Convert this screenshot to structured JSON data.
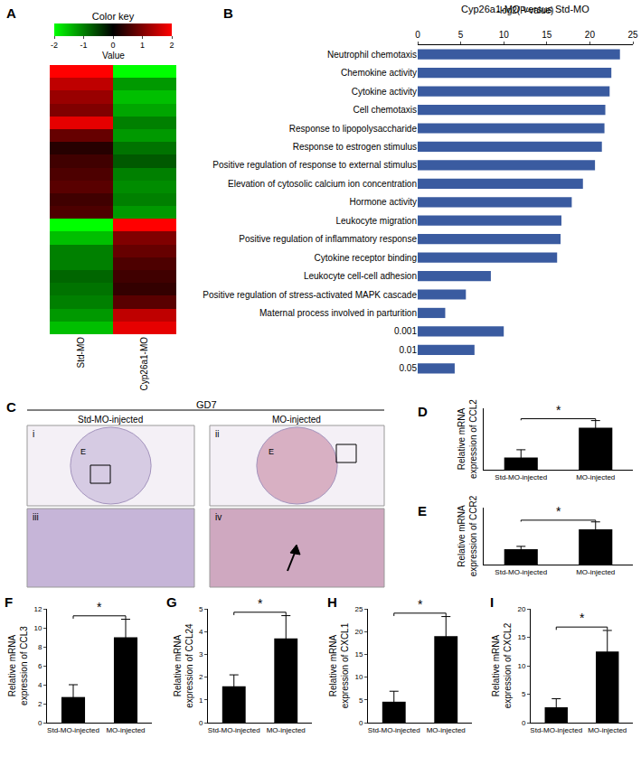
{
  "chart_data": [
    {
      "panel": "A",
      "type": "heatmap",
      "x": [
        "Std-MO",
        "Cyp26a1-MO"
      ],
      "cells": [
        [
          2,
          -2
        ],
        [
          1.5,
          -1.2
        ],
        [
          1.2,
          -1.5
        ],
        [
          1.0,
          -1.3
        ],
        [
          1.8,
          -1.0
        ],
        [
          0.8,
          -1.2
        ],
        [
          0.3,
          -0.9
        ],
        [
          0.5,
          -0.7
        ],
        [
          0.6,
          -1.0
        ],
        [
          0.7,
          -1.1
        ],
        [
          0.5,
          -1.0
        ],
        [
          0.6,
          -1.2
        ],
        [
          -2,
          2
        ],
        [
          -1.5,
          1.0
        ],
        [
          -1.0,
          0.8
        ],
        [
          -1.0,
          0.6
        ],
        [
          -0.8,
          0.5
        ],
        [
          -0.9,
          0.4
        ],
        [
          -1.0,
          0.7
        ],
        [
          -1.2,
          1.5
        ],
        [
          -1.5,
          1.8
        ]
      ],
      "colorbar": {
        "title": "Color key",
        "label": "Value",
        "range": [
          -2,
          2
        ],
        "ticks": [
          -2,
          -1,
          0,
          1,
          2
        ]
      }
    },
    {
      "panel": "B",
      "type": "bar",
      "orientation": "horizontal",
      "title": "Cyp26a1-MO versus Std-MO",
      "xlabel": "-log2(P-value)",
      "categories": [
        "Neutrophil chemotaxis",
        "Chemokine activity",
        "Cytokine activity",
        "Cell chemotaxis",
        "Response to lipopolysaccharide",
        "Response to estrogen stimulus",
        "Positive regulation of response to external stimulus",
        "Elevation of cytosolic calcium ion concentration",
        "Hormone activity",
        "Leukocyte migration",
        "Positive regulation of inflammatory response",
        "Cytokine receptor binding",
        "Leukocyte cell-cell adhesion",
        "Positive regulation of stress-activated MAPK cascade",
        "Maternal process involved in parturition",
        "0.001",
        "0.01",
        "0.05"
      ],
      "values": [
        23.5,
        22.5,
        22.3,
        21.8,
        21.7,
        21.4,
        20.6,
        19.2,
        17.9,
        16.7,
        16.6,
        16.2,
        8.5,
        5.6,
        3.2,
        10.0,
        6.6,
        4.3
      ],
      "color": "#3a5ba0",
      "xlim": [
        0,
        25
      ],
      "xticks": [
        0,
        5,
        10,
        15,
        20,
        25
      ]
    },
    {
      "panel": "D",
      "type": "bar",
      "ylabel": "Relative mRNA expression of CCL2",
      "categories": [
        "Std-MO-injected",
        "MO-injected"
      ],
      "values": [
        2.4,
        8.2
      ],
      "errors": [
        1.5,
        1.4
      ],
      "color": "#000000",
      "ylim": [
        0,
        12
      ],
      "tick_labels": false,
      "significance": "*"
    },
    {
      "panel": "E",
      "type": "bar",
      "ylabel": "Relative mRNA expression of CCR2",
      "categories": [
        "Std-MO-injected",
        "MO-injected"
      ],
      "values": [
        1.35,
        3.1
      ],
      "errors": [
        0.25,
        0.65
      ],
      "color": "#000000",
      "ylim": [
        0,
        5
      ],
      "tick_labels": false,
      "significance": "*"
    },
    {
      "panel": "F",
      "type": "bar",
      "ylabel": "Relative mRNA expression of CCL3",
      "categories": [
        "Std-MO-injected",
        "MO-injected"
      ],
      "values": [
        2.7,
        9.0
      ],
      "errors": [
        1.3,
        1.9
      ],
      "color": "#000000",
      "ylim": [
        0,
        12
      ],
      "yticks": [
        0,
        2,
        4,
        6,
        8,
        10,
        12
      ],
      "significance": "*"
    },
    {
      "panel": "G",
      "type": "bar",
      "ylabel": "Relative mRNA expression of CCL24",
      "categories": [
        "Std-MO-injected",
        "MO-injected"
      ],
      "values": [
        1.6,
        3.7
      ],
      "errors": [
        0.5,
        1.0
      ],
      "color": "#000000",
      "ylim": [
        0,
        5
      ],
      "yticks": [
        0,
        1,
        2,
        3,
        4,
        5
      ],
      "significance": "*"
    },
    {
      "panel": "H",
      "type": "bar",
      "ylabel": "Relative mRNA expression of CXCL1",
      "categories": [
        "Std-MO-injected",
        "MO-injected"
      ],
      "values": [
        4.6,
        19.0
      ],
      "errors": [
        2.3,
        4.3
      ],
      "color": "#000000",
      "ylim": [
        0,
        25
      ],
      "yticks": [
        0,
        5,
        10,
        15,
        20,
        25
      ],
      "significance": "*"
    },
    {
      "panel": "I",
      "type": "bar",
      "ylabel": "Relative mRNA expression of CXCL2",
      "categories": [
        "Std-MO-injected",
        "MO-injected"
      ],
      "values": [
        2.7,
        12.5
      ],
      "errors": [
        1.5,
        3.7
      ],
      "color": "#000000",
      "ylim": [
        0,
        20
      ],
      "yticks": [
        0,
        5,
        10,
        15,
        20
      ],
      "significance": "*"
    }
  ],
  "panel_c": {
    "panel": "C",
    "title": "GD7",
    "columns": [
      "Std-MO-injected",
      "MO-injected"
    ],
    "images": [
      {
        "label": "i",
        "marker": "E"
      },
      {
        "label": "ii",
        "marker": "E"
      },
      {
        "label": "iii"
      },
      {
        "label": "iv"
      }
    ]
  }
}
